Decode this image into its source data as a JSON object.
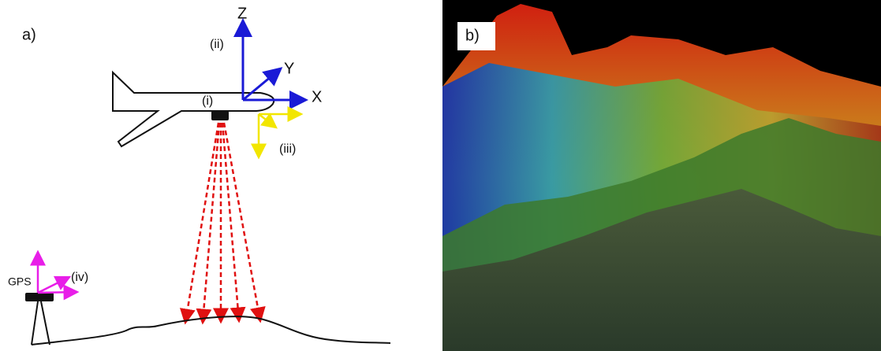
{
  "panel_a": {
    "label": "a)",
    "axes": {
      "z": "Z",
      "y": "Y",
      "x": "X"
    },
    "markers": {
      "i": "(i)",
      "ii": "(ii)",
      "iii": "(iii)",
      "iv": "(iv)"
    },
    "gps": "GPS"
  },
  "panel_b": {
    "label": "b)"
  }
}
